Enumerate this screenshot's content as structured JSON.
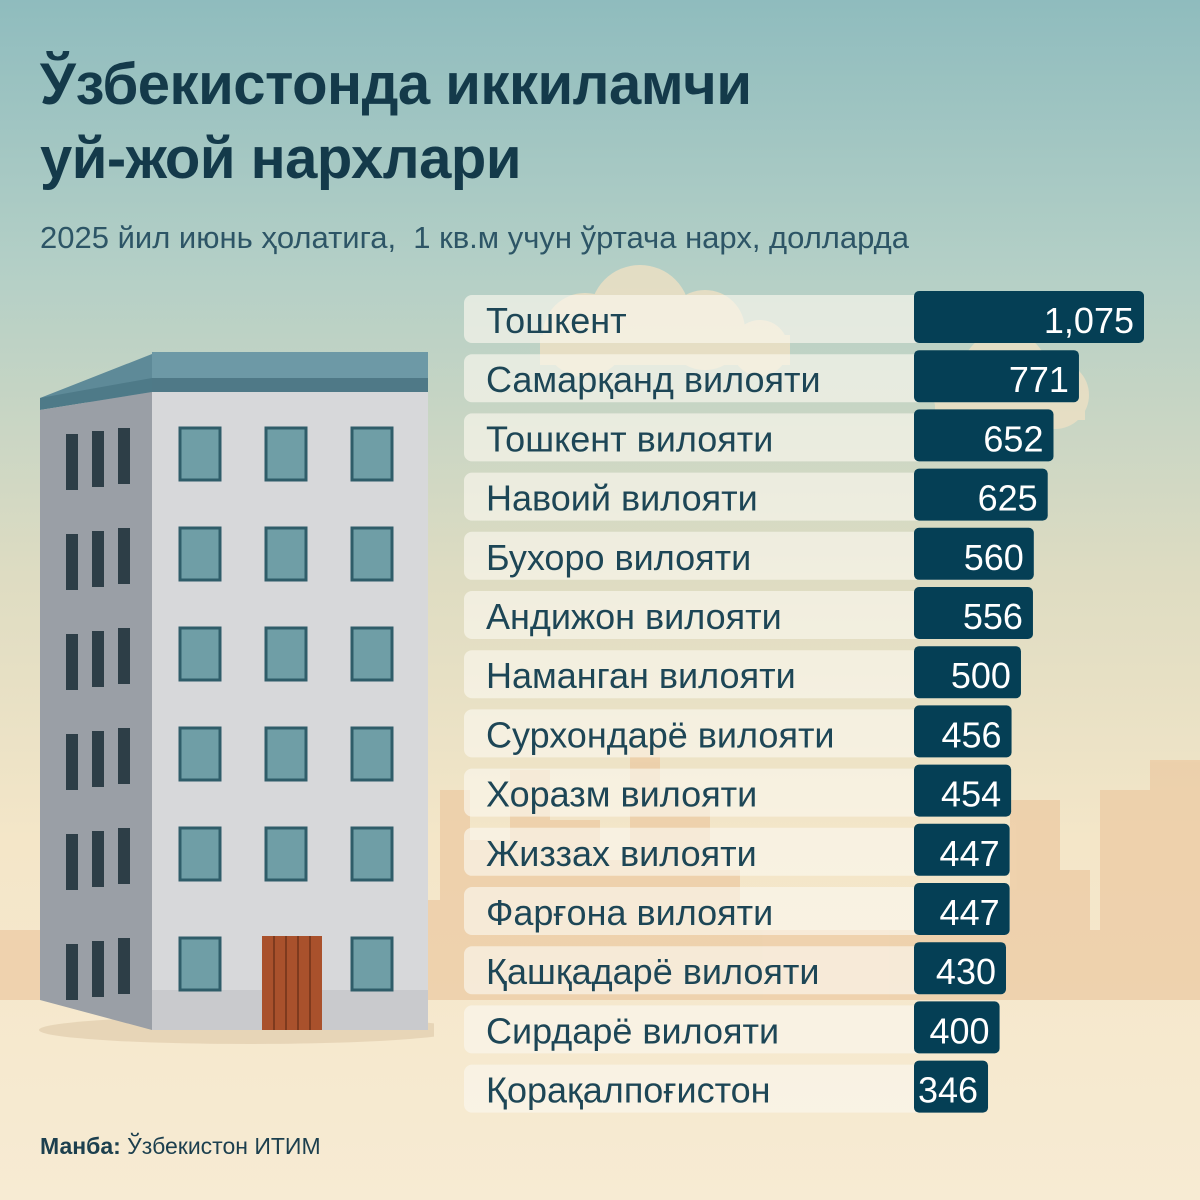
{
  "title": {
    "line1": "Ўзбекистонда иккиламчи",
    "line2": "уй-жой нархлари"
  },
  "subtitle": "2025 йил июнь ҳолатига,  1 кв.м учун ўртача нарх, долларда",
  "source": {
    "label": "Манба:",
    "text": "Ўзбекистон ИТИМ"
  },
  "colors": {
    "bar": "#053f55",
    "row_band": "#fbf7ee",
    "title": "#143a4a",
    "value_text": "#ffffff"
  },
  "chart_data": {
    "type": "bar",
    "orientation": "horizontal",
    "categories": [
      "Тошкент",
      "Самарқанд вилояти",
      "Тошкент вилояти",
      "Навоий вилояти",
      "Бухоро вилояти",
      "Андижон вилояти",
      "Наманган вилояти",
      "Сурхондарё вилояти",
      "Хоразм вилояти",
      "Жиззах вилояти",
      "Фарғона вилояти",
      "Қашқадарё вилояти",
      "Сирдарё вилояти",
      "Қорақалпоғистон"
    ],
    "values": [
      1075,
      771,
      652,
      625,
      560,
      556,
      500,
      456,
      454,
      447,
      447,
      430,
      400,
      346
    ],
    "value_labels": [
      "1,075",
      "771",
      "652",
      "625",
      "560",
      "556",
      "500",
      "456",
      "454",
      "447",
      "447",
      "430",
      "400",
      "346"
    ],
    "title": "Ўзбекистонда иккиламчи уй-жой нархлари",
    "subtitle": "2025 йил июнь ҳолатига,  1 кв.м учун ўртача нарх, долларда",
    "xlabel": "",
    "ylabel": "",
    "grid": false,
    "legend": "none"
  }
}
